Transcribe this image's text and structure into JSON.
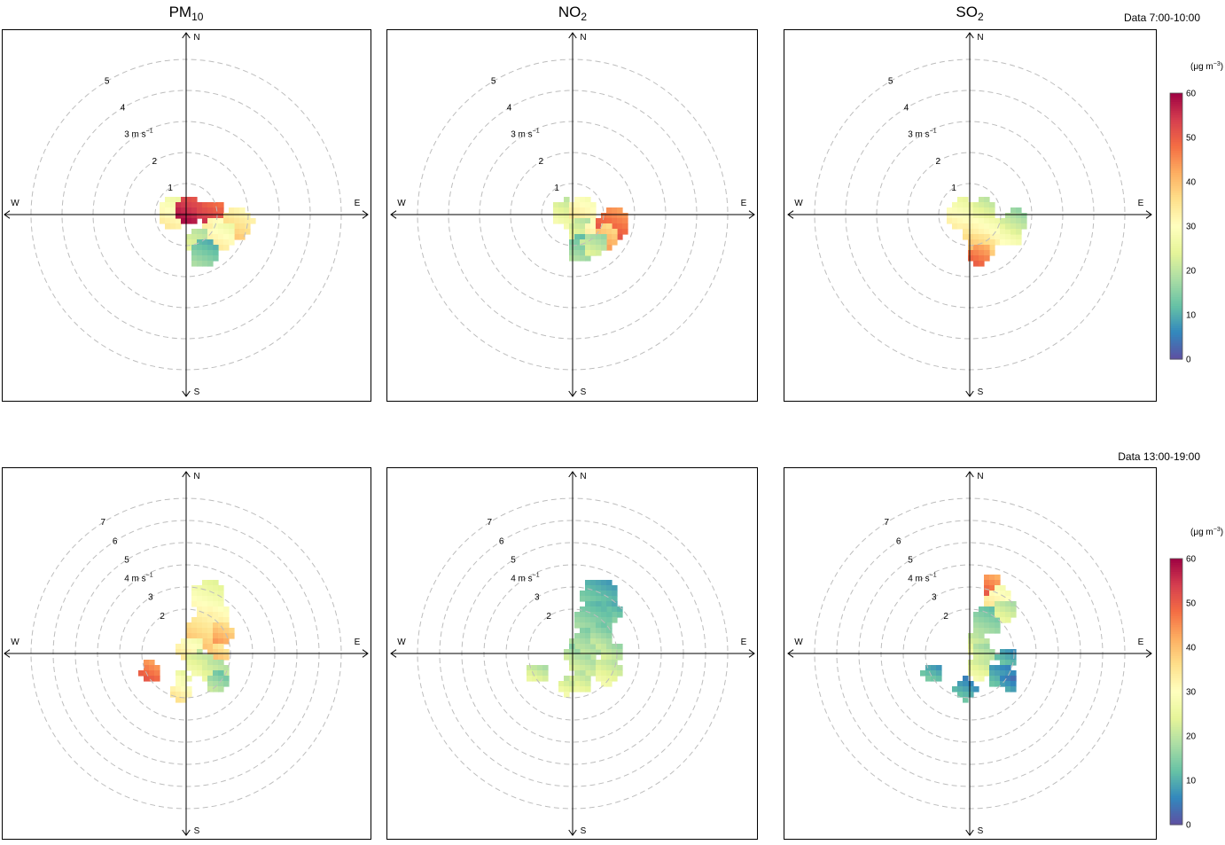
{
  "figure": {
    "columns": [
      {
        "base": "PM",
        "sub": "10"
      },
      {
        "base": "NO",
        "sub": "2"
      },
      {
        "base": "SO",
        "sub": "2"
      }
    ],
    "rows": [
      {
        "label": "Data 7:00-10:00"
      },
      {
        "label": "Data 13:00-19:00"
      }
    ],
    "compass": {
      "n": "N",
      "s": "S",
      "e": "E",
      "w": "W"
    },
    "colorbar": {
      "unit_base": "(μg m",
      "unit_sup": "−3",
      "unit_close": ")",
      "ticks": [
        "0",
        "10",
        "20",
        "30",
        "40",
        "50",
        "60"
      ],
      "range": [
        0,
        60
      ],
      "palette": [
        "#5E4FA2",
        "#3288BD",
        "#66C2A5",
        "#ABDDA4",
        "#E6F598",
        "#FFFFBF",
        "#FEE08B",
        "#FDAE61",
        "#F46D43",
        "#D53E4F",
        "#9E0142"
      ]
    }
  },
  "chart_data": [
    {
      "type": "heatmap",
      "subtype": "polar-plot",
      "pollutant": "PM10",
      "period": "Data 7:00-10:00",
      "radial_unit": "m s",
      "radial_unit_sup": "−1",
      "radial_ticks": [
        {
          "value": 1,
          "label": "1"
        },
        {
          "value": 2,
          "label": "2"
        },
        {
          "value": 3,
          "label": "3 m s",
          "unit": true
        },
        {
          "value": 4,
          "label": "4"
        },
        {
          "value": 5,
          "label": "5"
        }
      ],
      "r_max": 5,
      "blobs": [
        {
          "x": -0.4,
          "y": 0.05,
          "r": 0.5,
          "v": 30
        },
        {
          "x": 0.1,
          "y": 0.15,
          "r": 0.45,
          "v": 55
        },
        {
          "x": 0.85,
          "y": 0.0,
          "r": 0.45,
          "v": 52
        },
        {
          "x": 0.9,
          "y": -0.55,
          "r": 0.45,
          "v": 34
        },
        {
          "x": 0.5,
          "y": -0.9,
          "r": 0.5,
          "v": 22
        },
        {
          "x": 1.65,
          "y": -0.25,
          "r": 0.5,
          "v": 35
        },
        {
          "x": 1.15,
          "y": -0.65,
          "r": 0.45,
          "v": 30
        },
        {
          "x": 0.55,
          "y": -1.25,
          "r": 0.45,
          "v": 14
        }
      ]
    },
    {
      "type": "heatmap",
      "subtype": "polar-plot",
      "pollutant": "NO2",
      "period": "Data 7:00-10:00",
      "radial_unit": "m s",
      "radial_unit_sup": "−1",
      "radial_ticks": [
        {
          "value": 1,
          "label": "1"
        },
        {
          "value": 2,
          "label": "2"
        },
        {
          "value": 3,
          "label": "3 m s",
          "unit": true
        },
        {
          "value": 4,
          "label": "4"
        },
        {
          "value": 5,
          "label": "5"
        }
      ],
      "r_max": 5,
      "blobs": [
        {
          "x": -0.2,
          "y": 0.05,
          "r": 0.45,
          "v": 24
        },
        {
          "x": 0.35,
          "y": 0.1,
          "r": 0.45,
          "v": 32
        },
        {
          "x": 0.35,
          "y": -0.5,
          "r": 0.45,
          "v": 22
        },
        {
          "x": 0.8,
          "y": -0.6,
          "r": 0.45,
          "v": 32
        },
        {
          "x": 1.3,
          "y": -0.3,
          "r": 0.5,
          "v": 48
        },
        {
          "x": 1.1,
          "y": -0.7,
          "r": 0.4,
          "v": 40
        },
        {
          "x": 0.3,
          "y": -1.1,
          "r": 0.45,
          "v": 15
        },
        {
          "x": 0.7,
          "y": -0.95,
          "r": 0.4,
          "v": 20
        }
      ]
    },
    {
      "type": "heatmap",
      "subtype": "polar-plot",
      "pollutant": "SO2",
      "period": "Data 7:00-10:00",
      "radial_unit": "m s",
      "radial_unit_sup": "−1",
      "radial_ticks": [
        {
          "value": 1,
          "label": "1"
        },
        {
          "value": 2,
          "label": "2"
        },
        {
          "value": 3,
          "label": "3 m s",
          "unit": true
        },
        {
          "value": 4,
          "label": "4"
        },
        {
          "value": 5,
          "label": "5"
        }
      ],
      "r_max": 5,
      "blobs": [
        {
          "x": -0.2,
          "y": 0.0,
          "r": 0.5,
          "v": 29
        },
        {
          "x": 0.45,
          "y": 0.1,
          "r": 0.4,
          "v": 24
        },
        {
          "x": 0.2,
          "y": -0.55,
          "r": 0.45,
          "v": 33
        },
        {
          "x": 0.8,
          "y": -0.55,
          "r": 0.45,
          "v": 30
        },
        {
          "x": 1.3,
          "y": -0.6,
          "r": 0.4,
          "v": 26
        },
        {
          "x": 1.45,
          "y": -0.2,
          "r": 0.4,
          "v": 20
        },
        {
          "x": 0.35,
          "y": -1.0,
          "r": 0.45,
          "v": 38
        },
        {
          "x": 0.3,
          "y": -1.3,
          "r": 0.35,
          "v": 46
        }
      ]
    },
    {
      "type": "heatmap",
      "subtype": "polar-plot",
      "pollutant": "PM10",
      "period": "Data 13:00-19:00",
      "radial_unit": "m s",
      "radial_unit_sup": "−1",
      "radial_ticks": [
        {
          "value": 2,
          "label": "2"
        },
        {
          "value": 3,
          "label": "3"
        },
        {
          "value": 4,
          "label": "4 m s",
          "unit": true
        },
        {
          "value": 5,
          "label": "5"
        },
        {
          "value": 6,
          "label": "6"
        },
        {
          "value": 7,
          "label": "7"
        }
      ],
      "r_max": 7,
      "blobs": [
        {
          "x": 1.0,
          "y": 2.5,
          "r": 0.8,
          "v": 28
        },
        {
          "x": 1.4,
          "y": 1.6,
          "r": 0.6,
          "v": 33
        },
        {
          "x": 0.8,
          "y": 1.0,
          "r": 0.8,
          "v": 36
        },
        {
          "x": 1.6,
          "y": 0.9,
          "r": 0.5,
          "v": 40
        },
        {
          "x": 0.2,
          "y": 0.2,
          "r": 0.6,
          "v": 31
        },
        {
          "x": 1.4,
          "y": 0.0,
          "r": 0.45,
          "v": 38
        },
        {
          "x": 0.6,
          "y": -0.5,
          "r": 0.6,
          "v": 24
        },
        {
          "x": 1.3,
          "y": -0.8,
          "r": 0.6,
          "v": 22
        },
        {
          "x": 1.4,
          "y": -1.3,
          "r": 0.45,
          "v": 17
        },
        {
          "x": -0.2,
          "y": -1.1,
          "r": 0.35,
          "v": 28
        },
        {
          "x": -0.3,
          "y": -1.7,
          "r": 0.45,
          "v": 32
        },
        {
          "x": -1.6,
          "y": -0.8,
          "r": 0.45,
          "v": 47
        }
      ]
    },
    {
      "type": "heatmap",
      "subtype": "polar-plot",
      "pollutant": "NO2",
      "period": "Data 13:00-19:00",
      "radial_unit": "m s",
      "radial_unit_sup": "−1",
      "radial_ticks": [
        {
          "value": 2,
          "label": "2"
        },
        {
          "value": 3,
          "label": "3"
        },
        {
          "value": 4,
          "label": "4 m s",
          "unit": true
        },
        {
          "value": 5,
          "label": "5"
        },
        {
          "value": 6,
          "label": "6"
        },
        {
          "value": 7,
          "label": "7"
        }
      ],
      "r_max": 7,
      "blobs": [
        {
          "x": 1.2,
          "y": 2.6,
          "r": 0.8,
          "v": 12
        },
        {
          "x": 1.7,
          "y": 1.9,
          "r": 0.5,
          "v": 13
        },
        {
          "x": 0.9,
          "y": 1.5,
          "r": 0.8,
          "v": 15
        },
        {
          "x": 0.6,
          "y": 0.4,
          "r": 0.7,
          "v": 18
        },
        {
          "x": 1.3,
          "y": 0.8,
          "r": 0.5,
          "v": 17
        },
        {
          "x": -0.1,
          "y": 0.0,
          "r": 0.35,
          "v": 19
        },
        {
          "x": 1.8,
          "y": 0.0,
          "r": 0.5,
          "v": 20
        },
        {
          "x": 0.5,
          "y": -0.6,
          "r": 0.6,
          "v": 21
        },
        {
          "x": 1.6,
          "y": -0.8,
          "r": 0.6,
          "v": 23
        },
        {
          "x": 0.3,
          "y": -1.3,
          "r": 0.5,
          "v": 23
        },
        {
          "x": -0.3,
          "y": -1.5,
          "r": 0.4,
          "v": 24
        },
        {
          "x": -1.6,
          "y": -0.9,
          "r": 0.45,
          "v": 22
        }
      ]
    },
    {
      "type": "heatmap",
      "subtype": "polar-plot",
      "pollutant": "SO2",
      "period": "Data 13:00-19:00",
      "radial_unit": "m s",
      "radial_unit_sup": "−1",
      "radial_ticks": [
        {
          "value": 2,
          "label": "2"
        },
        {
          "value": 3,
          "label": "3"
        },
        {
          "value": 4,
          "label": "4 m s",
          "unit": true
        },
        {
          "value": 5,
          "label": "5"
        },
        {
          "value": 6,
          "label": "6"
        },
        {
          "value": 7,
          "label": "7"
        }
      ],
      "r_max": 7,
      "blobs": [
        {
          "x": 1.0,
          "y": 3.1,
          "r": 0.45,
          "v": 46
        },
        {
          "x": 1.3,
          "y": 2.4,
          "r": 0.6,
          "v": 32
        },
        {
          "x": 0.8,
          "y": 1.5,
          "r": 0.7,
          "v": 15
        },
        {
          "x": 1.6,
          "y": 1.9,
          "r": 0.5,
          "v": 22
        },
        {
          "x": 0.3,
          "y": 0.5,
          "r": 0.5,
          "v": 22
        },
        {
          "x": 0.6,
          "y": 0.0,
          "r": 0.5,
          "v": 20
        },
        {
          "x": 0.4,
          "y": -0.7,
          "r": 0.5,
          "v": 24
        },
        {
          "x": 1.7,
          "y": -0.2,
          "r": 0.5,
          "v": 10
        },
        {
          "x": 1.4,
          "y": -1.0,
          "r": 0.6,
          "v": 9
        },
        {
          "x": 1.8,
          "y": -1.3,
          "r": 0.4,
          "v": 6
        },
        {
          "x": -0.2,
          "y": -1.6,
          "r": 0.5,
          "v": 9
        },
        {
          "x": -1.7,
          "y": -0.9,
          "r": 0.45,
          "v": 11
        }
      ]
    }
  ]
}
